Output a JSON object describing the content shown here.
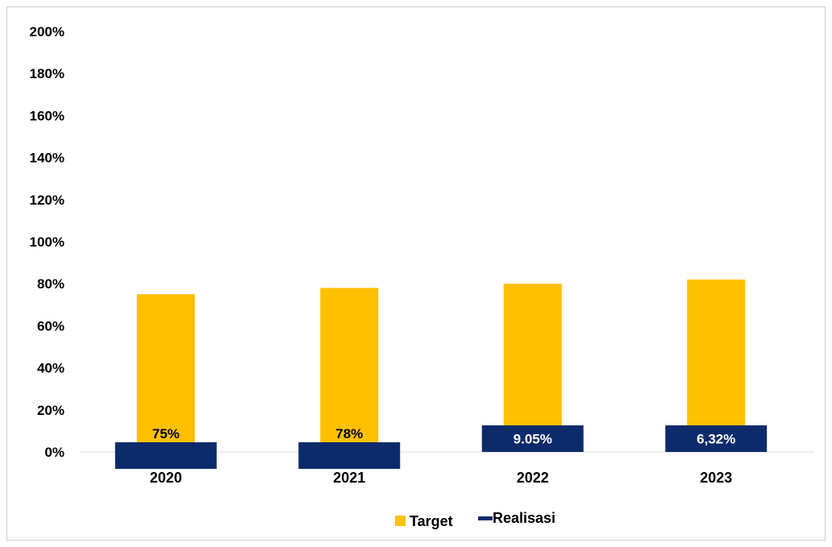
{
  "chart_data": {
    "type": "bar",
    "categories": [
      "2020",
      "2021",
      "2022",
      "2023"
    ],
    "series": [
      {
        "name": "Target",
        "color": "#FFC000",
        "values": [
          75,
          78,
          80,
          82
        ]
      },
      {
        "name": "Realisasi",
        "color": "#0D2B6B",
        "values": [
          0,
          0,
          9.05,
          6.32
        ]
      }
    ],
    "data_labels": [
      "75%",
      "78%",
      "9.05%",
      "6,32%"
    ],
    "ylim": [
      0,
      200
    ],
    "yticks": [
      {
        "value": 0,
        "label": "0%"
      },
      {
        "value": 20,
        "label": "20%"
      },
      {
        "value": 40,
        "label": "40%"
      },
      {
        "value": 60,
        "label": "60%"
      },
      {
        "value": 80,
        "label": "80%"
      },
      {
        "value": 100,
        "label": "100%"
      },
      {
        "value": 120,
        "label": "120%"
      },
      {
        "value": 140,
        "label": "140%"
      },
      {
        "value": 160,
        "label": "160%"
      },
      {
        "value": 180,
        "label": "180%"
      },
      {
        "value": 200,
        "label": "200%"
      }
    ],
    "grid": false,
    "legend_position": "bottom-center",
    "title": "",
    "xlabel": "",
    "ylabel": ""
  }
}
